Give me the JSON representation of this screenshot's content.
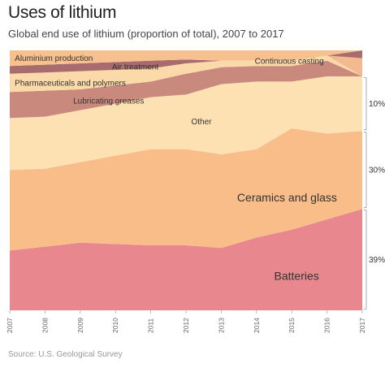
{
  "title": "Uses of lithium",
  "subtitle": "Global end use of lithium (proportion of total), 2007 to 2017",
  "source": "Source: U.S. Geological Survey",
  "chart_data": {
    "type": "area",
    "stacked": true,
    "normalized": true,
    "ylim": [
      0,
      100
    ],
    "x": [
      "2007",
      "2008",
      "2009",
      "2010",
      "2011",
      "2012",
      "2013",
      "2014",
      "2015",
      "2016",
      "2017"
    ],
    "series": [
      {
        "name": "Batteries",
        "color": "#e8878d",
        "values": [
          23,
          24.5,
          26,
          25.5,
          25,
          25,
          24,
          28,
          31,
          35,
          39
        ]
      },
      {
        "name": "Ceramics and glass",
        "color": "#f9bd8a",
        "values": [
          31,
          30,
          31,
          34,
          37,
          37,
          36,
          34,
          39,
          33,
          30
        ]
      },
      {
        "name": "Other",
        "color": "#fde1b3",
        "values": [
          20,
          20,
          20,
          20,
          20,
          21,
          27,
          26,
          18,
          22,
          21
        ]
      },
      {
        "name": "Lubricating greases",
        "color": "#c98a7d",
        "values": [
          10,
          10,
          8,
          7,
          6,
          8,
          6.5,
          6,
          6,
          6,
          0
        ]
      },
      {
        "name": "Pharmaceuticals and polymers",
        "color": "#fcd9a8",
        "values": [
          7,
          7,
          7,
          6,
          5,
          4,
          2.5,
          2,
          2,
          2,
          0
        ]
      },
      {
        "name": "Continuous casting",
        "color": "#f4b98e",
        "values": [
          0,
          0,
          0,
          0,
          0,
          0,
          0,
          0,
          0,
          0,
          7
        ]
      },
      {
        "name": "Air treatment",
        "color": "#a86c6f",
        "values": [
          3,
          3,
          3,
          3,
          3,
          1.5,
          0,
          0,
          0,
          0,
          3
        ]
      },
      {
        "name": "Aluminium production",
        "color": "#f6c08f",
        "values": [
          6,
          5.5,
          5,
          4.5,
          4,
          3.5,
          4,
          4,
          4,
          2,
          0
        ]
      }
    ],
    "annotations": [
      {
        "text": "10%",
        "series": "Other"
      },
      {
        "text": "30%",
        "series": "Ceramics and glass"
      },
      {
        "text": "39%",
        "series": "Batteries"
      }
    ]
  }
}
